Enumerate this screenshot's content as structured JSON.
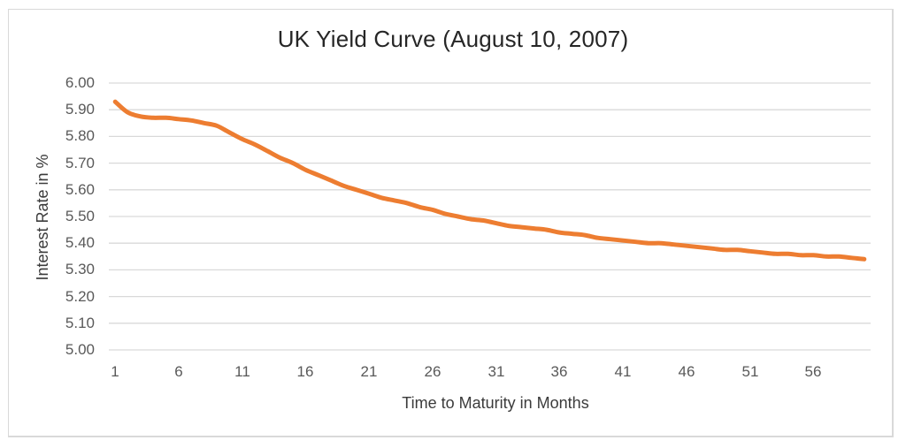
{
  "frame": {
    "border_color": "#d9d9d9",
    "background": "#ffffff"
  },
  "chart_data": {
    "type": "line",
    "title": "UK Yield Curve (August 10, 2007)",
    "xlabel": "Time to Maturity in Months",
    "ylabel": "Interest Rate in %",
    "legend": "none",
    "grid": "horizontal",
    "ylim": [
      5.0,
      6.0
    ],
    "y_tick_step": 0.1,
    "y_tick_labels": [
      "6.00",
      "5.90",
      "5.80",
      "5.70",
      "5.60",
      "5.50",
      "5.40",
      "5.30",
      "5.20",
      "5.10",
      "5.00"
    ],
    "x_tick_months": [
      1,
      6,
      11,
      16,
      21,
      26,
      31,
      36,
      41,
      46,
      51,
      56
    ],
    "x_tick_labels": [
      "1",
      "6",
      "11",
      "16",
      "21",
      "26",
      "31",
      "36",
      "41",
      "46",
      "51",
      "56"
    ],
    "x": [
      1,
      2,
      3,
      4,
      5,
      6,
      7,
      8,
      9,
      10,
      11,
      12,
      13,
      14,
      15,
      16,
      17,
      18,
      19,
      20,
      21,
      22,
      23,
      24,
      25,
      26,
      27,
      28,
      29,
      30,
      31,
      32,
      33,
      34,
      35,
      36,
      37,
      38,
      39,
      40,
      41,
      42,
      43,
      44,
      45,
      46,
      47,
      48,
      49,
      50,
      51,
      52,
      53,
      54,
      55,
      56,
      57,
      58,
      59,
      60
    ],
    "series": [
      {
        "name": "UK yield curve (August 10, 2007)",
        "color": "#ED7D31",
        "values": [
          5.93,
          5.89,
          5.875,
          5.87,
          5.87,
          5.865,
          5.86,
          5.85,
          5.84,
          5.815,
          5.79,
          5.77,
          5.745,
          5.72,
          5.7,
          5.675,
          5.655,
          5.635,
          5.615,
          5.6,
          5.585,
          5.57,
          5.56,
          5.55,
          5.535,
          5.525,
          5.51,
          5.5,
          5.49,
          5.485,
          5.475,
          5.465,
          5.46,
          5.455,
          5.45,
          5.44,
          5.435,
          5.43,
          5.42,
          5.415,
          5.41,
          5.405,
          5.4,
          5.4,
          5.395,
          5.39,
          5.385,
          5.38,
          5.375,
          5.375,
          5.37,
          5.365,
          5.36,
          5.36,
          5.355,
          5.355,
          5.35,
          5.35,
          5.345,
          5.34
        ]
      }
    ],
    "colors": {
      "gridline": "#d9d9d9",
      "tick_label": "#595959",
      "axis_title": "#3b3b3b",
      "title": "#262626"
    }
  }
}
